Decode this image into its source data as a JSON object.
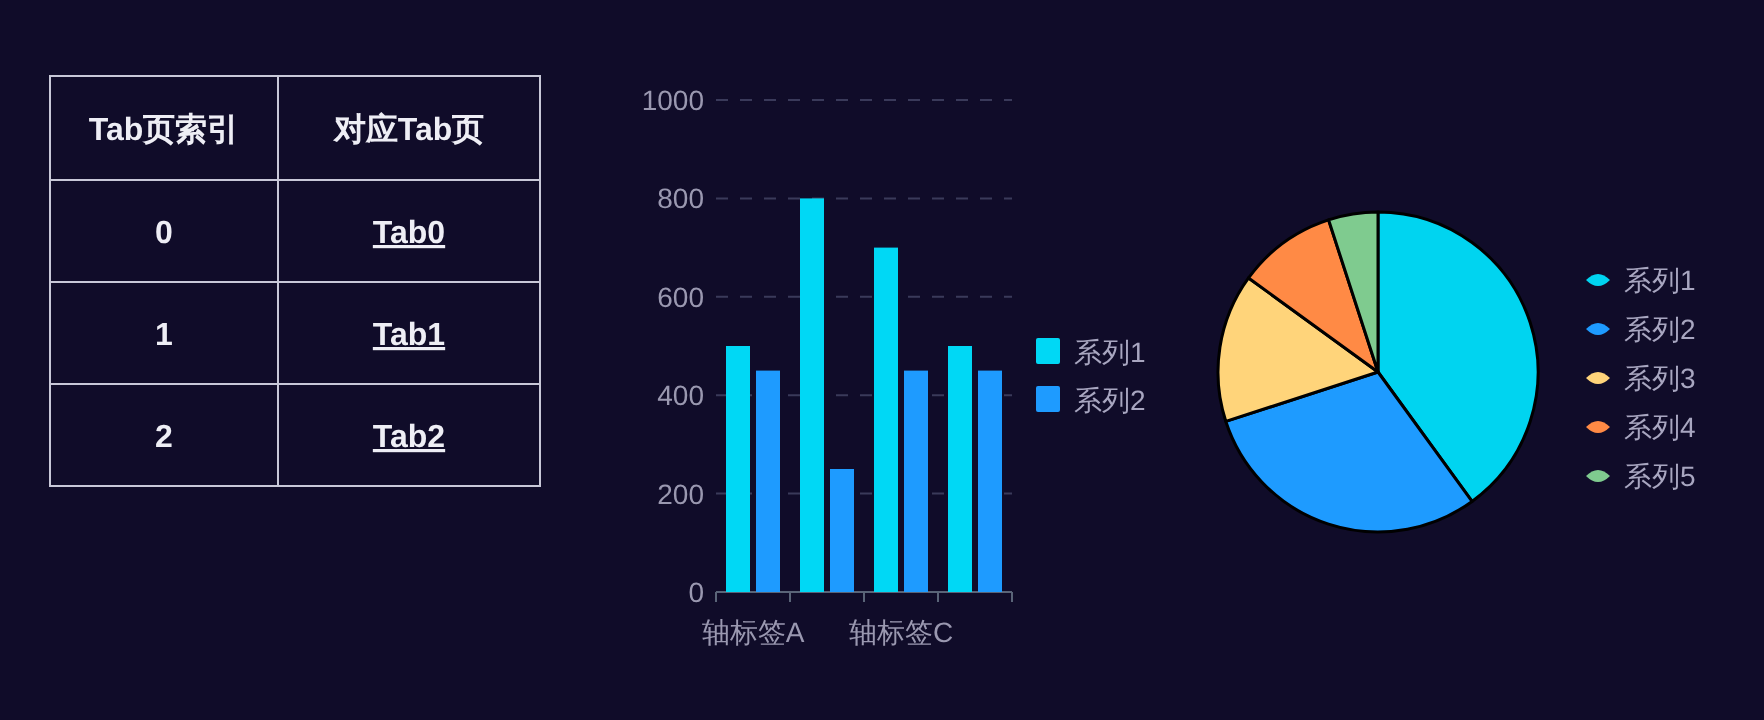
{
  "chart_data": [
    {
      "type": "other",
      "categories": [
        "Tab页索引",
        "对应Tab页"
      ],
      "annotations": [
        "0",
        "Tab0",
        "1",
        "Tab1",
        "2",
        "Tab2"
      ]
    },
    {
      "type": "bar",
      "categories": [
        "轴标签A",
        null,
        "轴标签C",
        null
      ],
      "ylim": [
        0,
        1000
      ],
      "yticks": [
        0,
        200,
        400,
        600,
        800,
        1000
      ],
      "grid": "y",
      "legend": "right",
      "series": [
        {
          "name": "系列1",
          "color": "#00d8f5",
          "values": [
            500,
            800,
            700,
            500
          ]
        },
        {
          "name": "系列2",
          "color": "#1e9bff",
          "values": [
            450,
            250,
            450,
            450
          ]
        }
      ]
    },
    {
      "type": "pie",
      "categories": [
        "系列1",
        "系列2",
        "系列3",
        "系列4",
        "系列5"
      ],
      "values": [
        40,
        30,
        15,
        10,
        5
      ],
      "colors": [
        "#00d4f0",
        "#1e9bff",
        "#ffd47a",
        "#ff8a45",
        "#7fcb8f"
      ],
      "legend": "right"
    }
  ]
}
